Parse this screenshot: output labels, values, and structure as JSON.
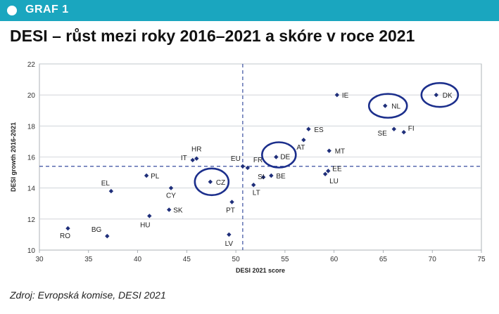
{
  "header": {
    "tag": "GRAF 1"
  },
  "title": "DESI – růst mezi roky 2016–2021 a skóre v roce 2021",
  "source": "Zdroj: Evropská komise, DESI 2021",
  "colors": {
    "accent": "#1aa6bf",
    "marker": "#1f2f7a",
    "reference": "#3a4fa0",
    "highlight": "#1c2f8c"
  },
  "chart_data": {
    "type": "scatter",
    "xlabel": "DESI 2021 score",
    "ylabel": "DESI growth 2016-2021",
    "xlim": [
      30,
      75
    ],
    "ylim": [
      10,
      22
    ],
    "xticks": [
      30,
      35,
      40,
      45,
      50,
      55,
      60,
      65,
      70,
      75
    ],
    "xtick_labels": [
      "30",
      "35",
      "40",
      "45",
      "50",
      "55",
      "60",
      "65",
      "70",
      "75"
    ],
    "yticks": [
      10,
      12,
      14,
      16,
      18,
      20,
      22
    ],
    "grid": true,
    "reference_lines": {
      "x": 50.7,
      "y": 15.4
    },
    "highlighted": [
      "CZ",
      "DE",
      "NL",
      "DK"
    ],
    "points": [
      {
        "label": "RO",
        "x": 32.9,
        "y": 11.4
      },
      {
        "label": "BG",
        "x": 36.9,
        "y": 10.9
      },
      {
        "label": "EL",
        "x": 37.3,
        "y": 13.8
      },
      {
        "label": "PL",
        "x": 40.9,
        "y": 14.8
      },
      {
        "label": "HU",
        "x": 41.2,
        "y": 12.2
      },
      {
        "label": "CY",
        "x": 43.4,
        "y": 14.0
      },
      {
        "label": "SK",
        "x": 43.2,
        "y": 12.6
      },
      {
        "label": "IT",
        "x": 45.6,
        "y": 15.8
      },
      {
        "label": "HR",
        "x": 46.0,
        "y": 15.9
      },
      {
        "label": "CZ",
        "x": 47.4,
        "y": 14.4
      },
      {
        "label": "PT",
        "x": 49.6,
        "y": 13.1
      },
      {
        "label": "LV",
        "x": 49.3,
        "y": 11.0
      },
      {
        "label": "EU",
        "x": 50.7,
        "y": 15.4
      },
      {
        "label": "FR",
        "x": 51.2,
        "y": 15.3
      },
      {
        "label": "LT",
        "x": 51.8,
        "y": 14.2
      },
      {
        "label": "SI",
        "x": 52.8,
        "y": 14.7
      },
      {
        "label": "BE",
        "x": 53.6,
        "y": 14.8
      },
      {
        "label": "DE",
        "x": 54.1,
        "y": 16.0
      },
      {
        "label": "AT",
        "x": 56.9,
        "y": 17.1
      },
      {
        "label": "ES",
        "x": 57.4,
        "y": 17.8
      },
      {
        "label": "MT",
        "x": 59.5,
        "y": 16.4
      },
      {
        "label": "EE",
        "x": 59.4,
        "y": 15.1
      },
      {
        "label": "LU",
        "x": 59.1,
        "y": 14.9
      },
      {
        "label": "IE",
        "x": 60.3,
        "y": 20.0
      },
      {
        "label": "NL",
        "x": 65.2,
        "y": 19.3
      },
      {
        "label": "SE",
        "x": 66.1,
        "y": 17.8
      },
      {
        "label": "FI",
        "x": 67.1,
        "y": 17.6
      },
      {
        "label": "DK",
        "x": 70.4,
        "y": 20.0
      }
    ]
  }
}
